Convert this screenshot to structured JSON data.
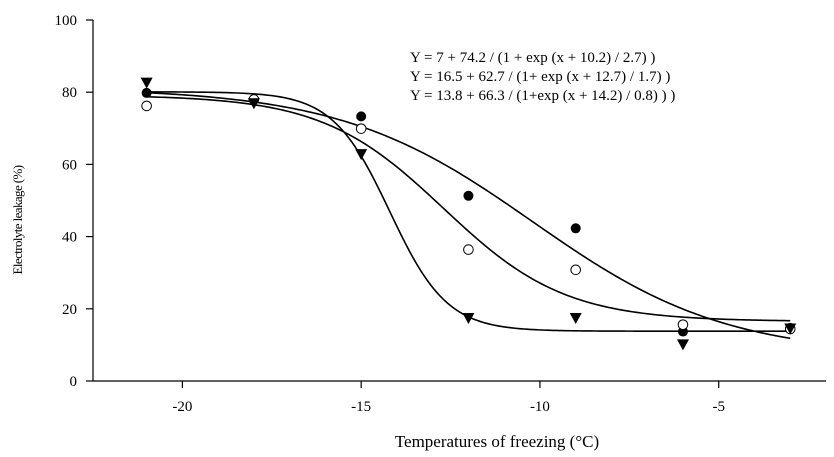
{
  "chart_data": {
    "type": "scatter",
    "xlabel": "Temperatures of freezing (°C)",
    "ylabel": "Electrolyte leakage (%)",
    "xlim": [
      -22.5,
      -2
    ],
    "ylim": [
      0,
      100
    ],
    "xticks": [
      -20,
      -15,
      -10,
      -5
    ],
    "yticks": [
      0,
      20,
      40,
      60,
      80,
      100
    ],
    "grid": false,
    "annotations": [
      "Y = 7 + 74.2 / (1 + exp (x + 10.2) / 2.7) )",
      "Y = 16.5 + 62.7 / (1+ exp (x + 12.7) / 1.7) )",
      "Y = 13.8 + 66.3 / (1+exp (x + 14.2) / 0.8) ) )"
    ],
    "series": [
      {
        "marker": "filled-circle",
        "x": [
          -21,
          -15,
          -12,
          -9,
          -6,
          -3
        ],
        "y": [
          79.8,
          73.3,
          51.3,
          42.3,
          13.7,
          14.7
        ],
        "fit": {
          "a": 7,
          "b": 74.2,
          "c": 10.2,
          "d": 2.7
        }
      },
      {
        "marker": "open-circle",
        "x": [
          -21,
          -18,
          -15,
          -12,
          -9,
          -6,
          -3
        ],
        "y": [
          76.2,
          78,
          69.9,
          36.4,
          30.8,
          15.6,
          14.4
        ],
        "fit": {
          "a": 16.5,
          "b": 62.7,
          "c": 12.7,
          "d": 1.7
        }
      },
      {
        "marker": "filled-triangle-down",
        "x": [
          -21,
          -18,
          -15,
          -12,
          -9,
          -6,
          -3
        ],
        "y": [
          82.5,
          76.8,
          62.7,
          17.3,
          17.3,
          10,
          14.4
        ],
        "fit": {
          "a": 13.8,
          "b": 66.3,
          "c": 14.2,
          "d": 0.8
        }
      }
    ]
  }
}
